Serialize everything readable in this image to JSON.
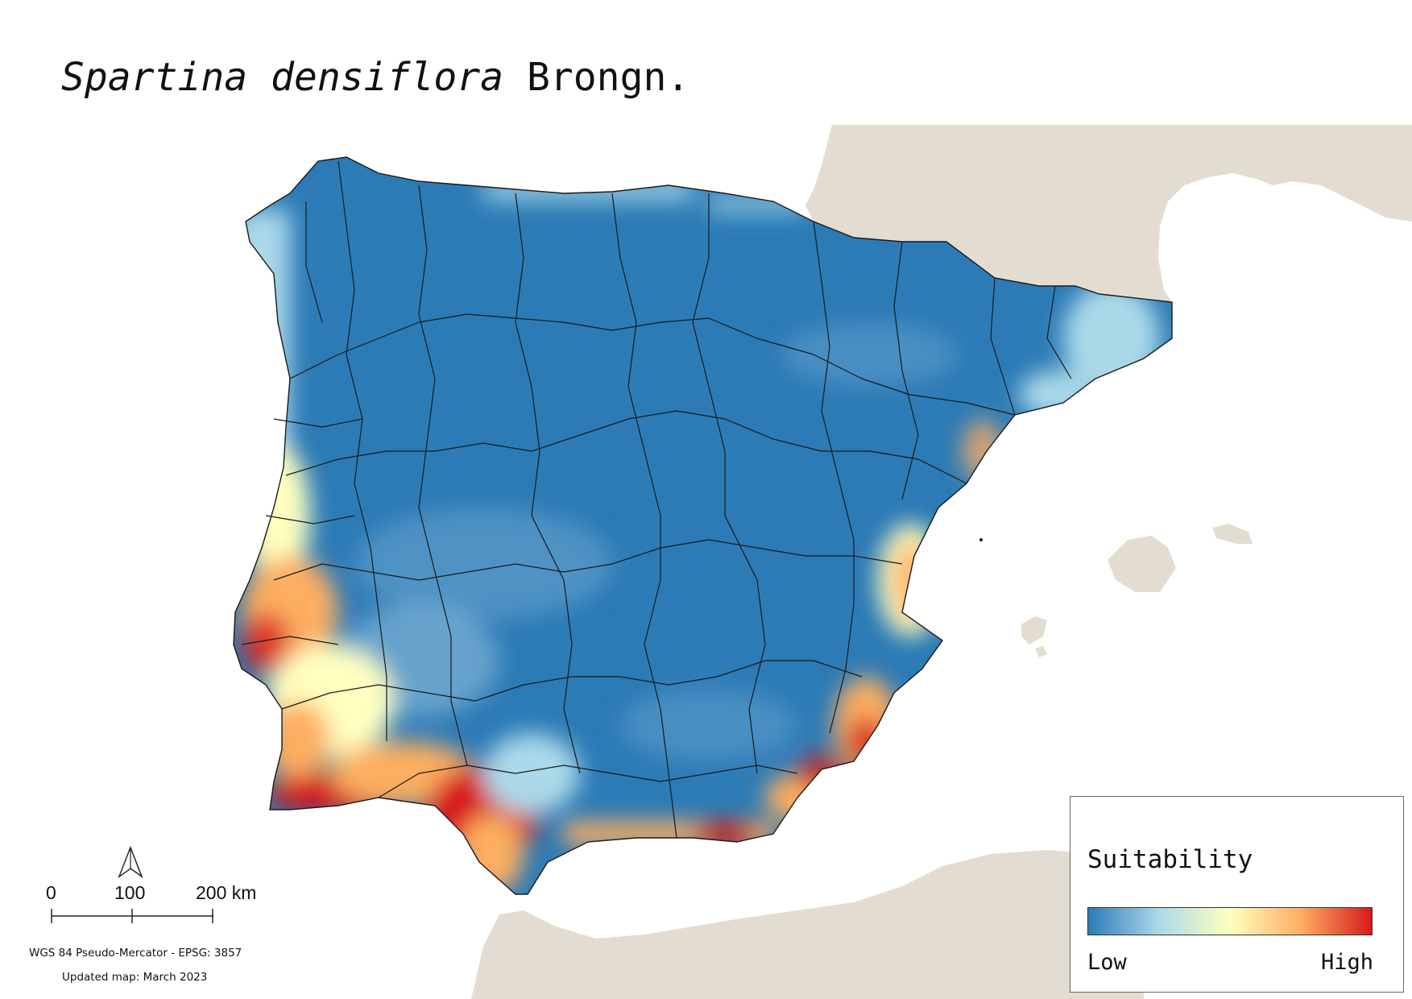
{
  "title": {
    "species": "Spartina densiflora",
    "authority": "Brongn."
  },
  "legend": {
    "title": "Suitability",
    "low_label": "Low",
    "high_label": "High",
    "ramp_colors": [
      "#2c7bb6",
      "#abd9e9",
      "#ffffbf",
      "#fdae61",
      "#d7191c"
    ]
  },
  "scale_bar": {
    "labels": [
      "0",
      "100",
      "200 km"
    ]
  },
  "crs_text": "WGS 84 Pseudo-Mercator  - EPSG: 3857",
  "updated_text": "Updated map: March 2023",
  "colors": {
    "background_land": "#e2ddd0",
    "sea": "#ffffff",
    "low": "#2c7bb6",
    "high": "#d7191c",
    "boundaries": "#1a1a1a"
  },
  "icons": {
    "north_arrow": "north-arrow-icon"
  }
}
